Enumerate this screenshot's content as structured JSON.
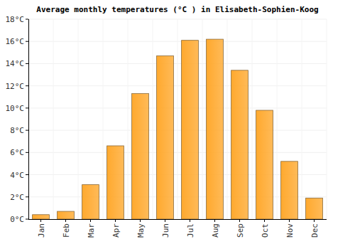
{
  "chart_data": {
    "type": "bar",
    "title": "Average monthly temperatures (°C ) in Elisabeth-Sophien-Koog",
    "categories": [
      "Jan",
      "Feb",
      "Mar",
      "Apr",
      "May",
      "Jun",
      "Jul",
      "Aug",
      "Sep",
      "Oct",
      "Nov",
      "Dec"
    ],
    "values": [
      0.4,
      0.7,
      3.1,
      6.6,
      11.3,
      14.7,
      16.1,
      16.2,
      13.4,
      9.8,
      5.2,
      1.9
    ],
    "color": "#ffa92e",
    "ylim": [
      0,
      18
    ],
    "yticks": [
      {
        "value": 0,
        "label": "0°C"
      },
      {
        "value": 2,
        "label": "2°C"
      },
      {
        "value": 4,
        "label": "4°C"
      },
      {
        "value": 6,
        "label": "6°C"
      },
      {
        "value": 8,
        "label": "8°C"
      },
      {
        "value": 10,
        "label": "10°C"
      },
      {
        "value": 12,
        "label": "12°C"
      },
      {
        "value": 14,
        "label": "14°C"
      },
      {
        "value": 16,
        "label": "16°C"
      },
      {
        "value": 18,
        "label": "18°C"
      }
    ],
    "grid": true
  }
}
